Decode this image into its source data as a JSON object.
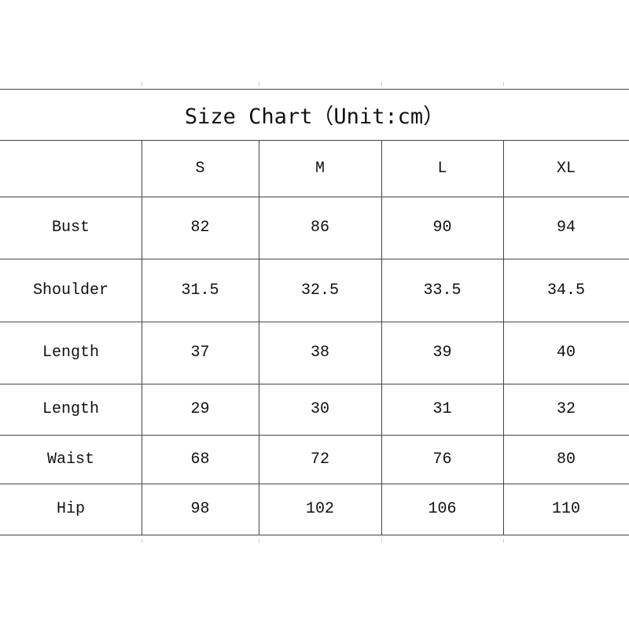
{
  "title": "Size Chart（Unit:cm）",
  "columns": [
    "",
    "S",
    "M",
    "L",
    "XL"
  ],
  "rows": [
    {
      "label": "Bust",
      "values": [
        "82",
        "86",
        "90",
        "94"
      ]
    },
    {
      "label": "Shoulder",
      "values": [
        "31.5",
        "32.5",
        "33.5",
        "34.5"
      ]
    },
    {
      "label": "Length",
      "values": [
        "37",
        "38",
        "39",
        "40"
      ]
    },
    {
      "label": "Length",
      "values": [
        "29",
        "30",
        "31",
        "32"
      ]
    },
    {
      "label": "Waist",
      "values": [
        "68",
        "72",
        "76",
        "80"
      ]
    },
    {
      "label": "Hip",
      "values": [
        "98",
        "102",
        "106",
        "110"
      ]
    }
  ]
}
